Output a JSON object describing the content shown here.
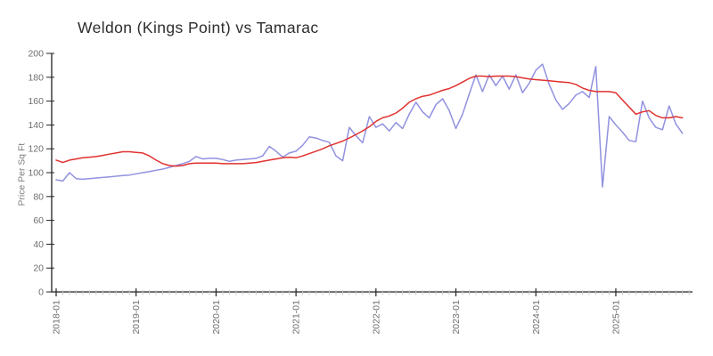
{
  "chart": {
    "title": "Weldon (Kings Point) vs Tamarac",
    "ylabel": "Price Per Sq Ft"
  },
  "colors": {
    "axis": "#222222",
    "tick_label": "#6e6e6e",
    "minor_tick": "#c6c6c6",
    "title": "#2e2e2e",
    "series_blue": "#9191e0",
    "series_red": "#e0312e"
  },
  "chart_data": {
    "type": "line",
    "title": "Weldon (Kings Point) vs Tamarac",
    "xlabel": "",
    "ylabel": "Price Per Sq Ft",
    "ylim": [
      0,
      200
    ],
    "ytick_step": 20,
    "yticks": [
      0,
      20,
      40,
      60,
      80,
      100,
      120,
      140,
      160,
      180,
      200
    ],
    "xtick_labels": [
      "2018-01",
      "2019-01",
      "2020-01",
      "2021-01",
      "2022-01",
      "2023-01",
      "2024-01",
      "2025-01"
    ],
    "x_start": "2018-01",
    "x_end": "2025-11",
    "x_freq": "monthly",
    "n_points": 95,
    "grid": false,
    "legend": "none",
    "style": "hand-drawn-xkcd",
    "series": [
      {
        "name": "Weldon (Kings Point)",
        "color": "#9191e0",
        "values": [
          94,
          93,
          100,
          95,
          94.5,
          95,
          95.5,
          96,
          96.5,
          97,
          97.5,
          98,
          99,
          100,
          101,
          102,
          103,
          104.5,
          106,
          107.5,
          109.5,
          113.5,
          111.5,
          112,
          112,
          111,
          109.5,
          110.5,
          111,
          111.5,
          112,
          114,
          122,
          118,
          113,
          116.5,
          118,
          123,
          130,
          129,
          127,
          125.5,
          114,
          110,
          138,
          131,
          125,
          147,
          138,
          141,
          135,
          142,
          137,
          149,
          159,
          151,
          146,
          157,
          162,
          152,
          137,
          149,
          166,
          182,
          168,
          182,
          173,
          181,
          170,
          182,
          167,
          175,
          186,
          191,
          174,
          161,
          153,
          158,
          165,
          168,
          163,
          189,
          88,
          147,
          140,
          134,
          127,
          126,
          160,
          146,
          138,
          136,
          156,
          141,
          133
        ]
      },
      {
        "name": "Tamarac",
        "color": "#e0312e",
        "values": [
          110.5,
          108.5,
          110.5,
          111.5,
          112.5,
          113,
          113.5,
          114.5,
          115.5,
          116.5,
          117.5,
          117.5,
          117,
          116.5,
          114,
          110.5,
          107.5,
          106,
          105.5,
          106,
          107.5,
          108,
          108,
          108,
          108,
          107.5,
          107.5,
          107.5,
          107.5,
          108,
          108.5,
          109.5,
          110.5,
          111.5,
          112.5,
          113,
          112.5,
          114,
          116,
          118,
          120,
          122.5,
          124.5,
          126.5,
          129,
          132,
          135,
          138.5,
          143,
          146,
          147.5,
          150,
          154,
          159,
          162,
          164,
          165,
          167,
          169,
          170.5,
          173,
          176,
          179,
          181,
          181,
          180.5,
          181,
          181,
          181,
          180.5,
          179.5,
          178.5,
          178,
          177.5,
          177,
          176.5,
          176,
          175.5,
          174,
          171,
          169,
          168,
          168,
          168,
          167,
          161,
          155,
          149,
          151,
          152,
          148,
          146,
          146,
          147,
          146
        ]
      }
    ]
  }
}
